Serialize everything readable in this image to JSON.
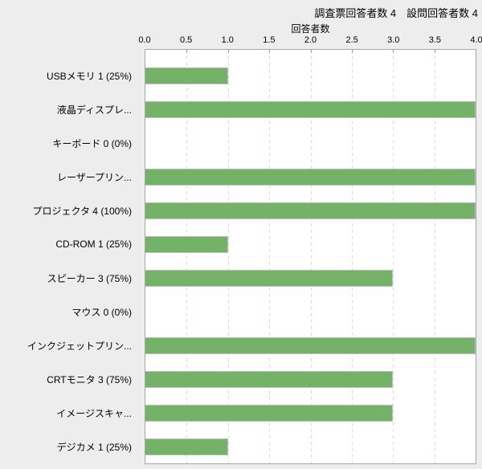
{
  "header": {
    "title": "調査票回答者数 4　設問回答者数 4"
  },
  "colors": {
    "page_background": "#ededed",
    "plot_background": "#ffffff",
    "plot_border": "#a6a6a6",
    "gridline": "#dadada",
    "bar_fill": "#74b267",
    "bar_border": "#bdbdbd",
    "text": "#000000"
  },
  "chart_data": {
    "type": "bar",
    "orientation": "horizontal",
    "title": "調査票回答者数 4　設問回答者数 4",
    "xlabel": "回答者数",
    "ylabel": "",
    "xlim": [
      0.0,
      4.0
    ],
    "grid": "dashed-vertical",
    "legend": "none",
    "tick_labels": [
      "0.0",
      "0.5",
      "1.0",
      "1.5",
      "2.0",
      "2.5",
      "3.0",
      "3.5",
      "4.0"
    ],
    "categories": [
      "USBメモリ 1 (25%)",
      "液晶ディスプレ...",
      "キーボード 0 (0%)",
      "レーザープリン...",
      "プロジェクタ 4 (100%)",
      "CD-ROM 1 (25%)",
      "スピーカー 3 (75%)",
      "マウス 0 (0%)",
      "インクジェットプリン...",
      "CRTモニタ 3 (75%)",
      "イメージスキャ...",
      "デジカメ 1 (25%)"
    ],
    "values": [
      1,
      4,
      0,
      4,
      4,
      1,
      3,
      0,
      4,
      3,
      3,
      1
    ]
  }
}
